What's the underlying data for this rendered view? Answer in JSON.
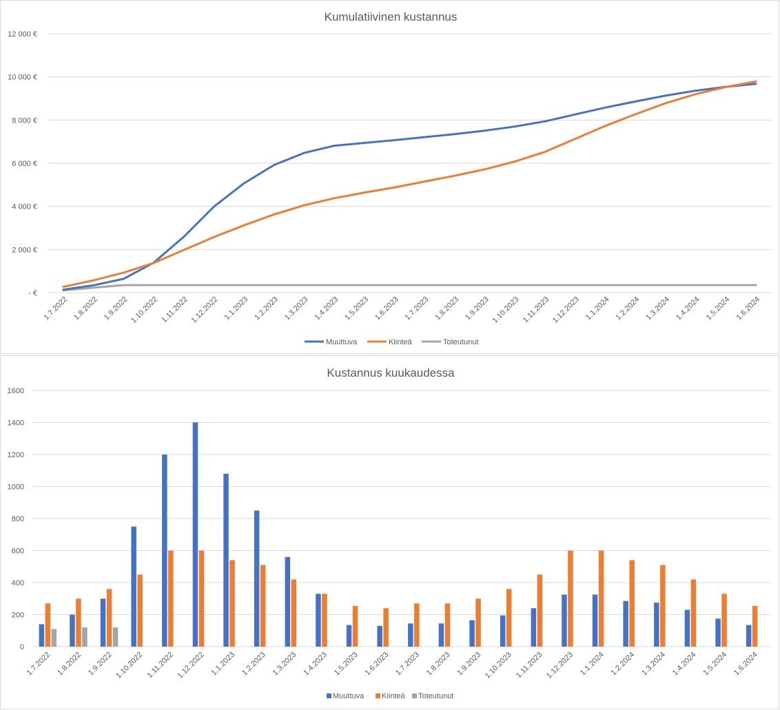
{
  "chart_data": [
    {
      "type": "line",
      "title": "Kumulatiivinen kustannus",
      "xlabel": "",
      "ylabel": "",
      "categories": [
        "1.7.2022",
        "1.8.2022",
        "1.9.2022",
        "1.10.2022",
        "1.11.2022",
        "1.12.2022",
        "1.1.2023",
        "1.2.2023",
        "1.3.2023",
        "1.4.2023",
        "1.5.2023",
        "1.6.2023",
        "1.7.2023",
        "1.8.2023",
        "1.9.2023",
        "1.10.2023",
        "1.11.2023",
        "1.12.2023",
        "1.1.2024",
        "1.2.2024",
        "1.3.2024",
        "1.4.2024",
        "1.5.2024",
        "1.6.2024"
      ],
      "yticks": [
        "-  €",
        "2 000 €",
        "4 000 €",
        "6 000 €",
        "8 000 €",
        "10 000 €",
        "12 000 €"
      ],
      "ylim": [
        0,
        12000
      ],
      "grid": true,
      "legend_position": "bottom",
      "series": [
        {
          "name": "Muuttuva",
          "color": "#4472c4",
          "values": [
            140,
            340,
            640,
            1390,
            2590,
            3990,
            5070,
            5920,
            6480,
            6810,
            6940,
            7070,
            7210,
            7350,
            7510,
            7700,
            7940,
            8260,
            8580,
            8860,
            9130,
            9360,
            9540,
            9680
          ]
        },
        {
          "name": "Kiinteä",
          "color": "#ed7d31",
          "values": [
            270,
            570,
            930,
            1380,
            1980,
            2580,
            3120,
            3630,
            4050,
            4380,
            4640,
            4880,
            5150,
            5420,
            5720,
            6080,
            6530,
            7130,
            7730,
            8270,
            8780,
            9200,
            9530,
            9790
          ]
        },
        {
          "name": "Toteutunut",
          "color": "#a5a5a5",
          "values": [
            110,
            230,
            350,
            350,
            350,
            350,
            350,
            350,
            350,
            350,
            350,
            350,
            350,
            350,
            350,
            350,
            350,
            350,
            350,
            350,
            350,
            350,
            350,
            350
          ]
        }
      ]
    },
    {
      "type": "bar",
      "title": "Kustannus kuukaudessa",
      "xlabel": "",
      "ylabel": "",
      "categories": [
        "1.7.2022",
        "1.8.2022",
        "1.9.2022",
        "1.10.2022",
        "1.11.2022",
        "1.12.2022",
        "1.1.2023",
        "1.2.2023",
        "1.3.2023",
        "1.4.2023",
        "1.5.2023",
        "1.6.2023",
        "1.7.2023",
        "1.8.2023",
        "1.9.2023",
        "1.10.2023",
        "1.11.2023",
        "1.12.2023",
        "1.1.2024",
        "1.2.2024",
        "1.3.2024",
        "1.4.2024",
        "1.5.2024",
        "1.6.2024"
      ],
      "yticks": [
        "0",
        "200",
        "400",
        "600",
        "800",
        "1000",
        "1200",
        "1400",
        "1600"
      ],
      "ylim": [
        0,
        1600
      ],
      "grid": true,
      "legend_position": "bottom",
      "series": [
        {
          "name": "Muuttuva",
          "color": "#4472c4",
          "values": [
            140,
            200,
            300,
            750,
            1200,
            1400,
            1080,
            850,
            560,
            330,
            135,
            130,
            145,
            145,
            165,
            195,
            240,
            325,
            325,
            285,
            275,
            230,
            175,
            135
          ]
        },
        {
          "name": "Kiinteä",
          "color": "#ed7d31",
          "values": [
            270,
            300,
            360,
            450,
            600,
            600,
            540,
            510,
            420,
            330,
            255,
            240,
            270,
            270,
            300,
            360,
            450,
            600,
            600,
            540,
            510,
            420,
            330,
            255
          ]
        },
        {
          "name": "Toteutunut",
          "color": "#a5a5a5",
          "values": [
            110,
            120,
            120,
            0,
            0,
            0,
            0,
            0,
            0,
            0,
            0,
            0,
            0,
            0,
            0,
            0,
            0,
            0,
            0,
            0,
            0,
            0,
            0,
            0
          ]
        }
      ]
    }
  ]
}
